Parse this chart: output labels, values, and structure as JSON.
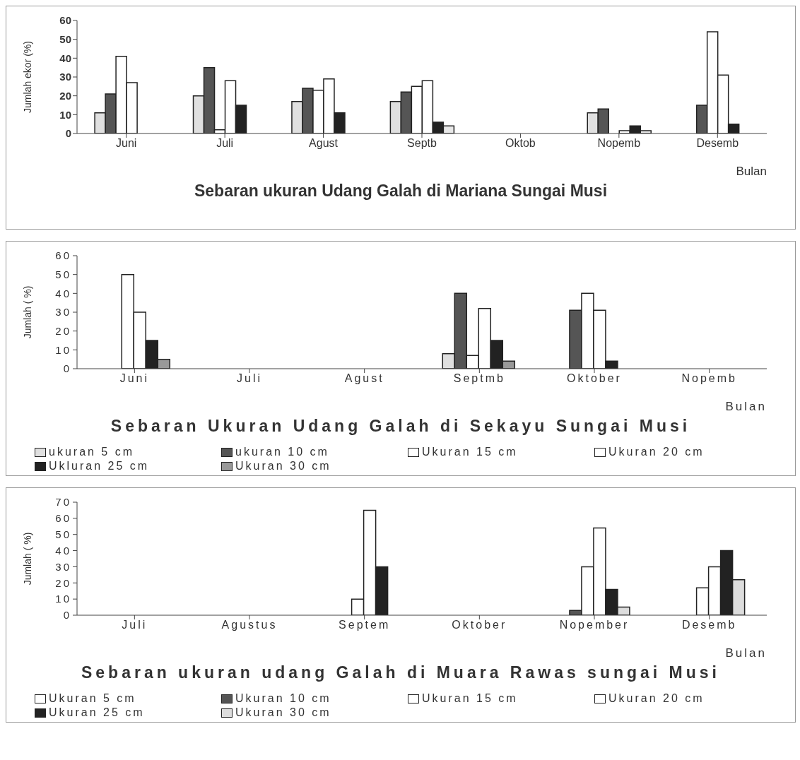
{
  "chart_data": [
    {
      "type": "bar",
      "title": "Sebaran  ukuran Udang Galah di Mariana Sungai Musi",
      "xlabel": "Bulan",
      "ylabel": "Jumlah ekor (%)",
      "categories": [
        "Juni",
        "Juli",
        "Agust",
        "Septb",
        "Oktob",
        "Nopemb",
        "Desemb"
      ],
      "ylim": [
        0,
        60
      ],
      "yticks": [
        0,
        10,
        20,
        30,
        40,
        50,
        60
      ],
      "legend": false,
      "series": [
        {
          "color": "#e0e0e0",
          "values": [
            11,
            20,
            17,
            17,
            0,
            11,
            0
          ]
        },
        {
          "color": "#555555",
          "values": [
            21,
            35,
            24,
            22,
            0,
            13,
            15
          ]
        },
        {
          "color": "#ffffff",
          "values": [
            41,
            2,
            23,
            25,
            0,
            0,
            54
          ]
        },
        {
          "color": "#ffffff",
          "values": [
            27,
            28,
            29,
            28,
            0,
            1.5,
            31
          ]
        },
        {
          "color": "#222222",
          "values": [
            0,
            15,
            11,
            6,
            0,
            4,
            5
          ]
        },
        {
          "color": "#e8e8e8",
          "values": [
            0,
            0,
            0,
            4,
            0,
            1.5,
            0
          ]
        }
      ]
    },
    {
      "type": "bar",
      "title": "Sebaran Ukuran Udang Galah di Sekayu Sungai Musi",
      "xlabel": "Bulan",
      "ylabel": "Jumlah ( %)",
      "categories": [
        "Juni",
        "Juli",
        "Agust",
        "Septmb",
        "Oktober",
        "Nopemb"
      ],
      "ylim": [
        0,
        60
      ],
      "yticks": [
        0,
        10,
        20,
        30,
        40,
        50,
        60
      ],
      "legend": "bottom",
      "series": [
        {
          "name": "ukuran 5 cm",
          "color": "#e0e0e0",
          "values": [
            0,
            0,
            0,
            8,
            0,
            0
          ]
        },
        {
          "name": "ukuran 10 cm",
          "color": "#555555",
          "values": [
            0,
            0,
            0,
            40,
            31,
            0
          ]
        },
        {
          "name": "Ukuran 15 cm",
          "color": "#ffffff",
          "values": [
            50,
            0,
            0,
            7,
            40,
            0
          ]
        },
        {
          "name": "Ukuran 20 cm",
          "color": "#ffffff",
          "values": [
            30,
            0,
            0,
            32,
            31,
            0
          ]
        },
        {
          "name": "Ukluran 25 cm",
          "color": "#222222",
          "values": [
            15,
            0,
            0,
            15,
            4,
            0
          ]
        },
        {
          "name": "Ukuran 30 cm",
          "color": "#999999",
          "values": [
            5,
            0,
            0,
            4,
            0,
            0
          ]
        }
      ]
    },
    {
      "type": "bar",
      "title": "Sebaran ukuran udang Galah di Muara Rawas sungai Musi",
      "xlabel": "Bulan",
      "ylabel": "Jumlah ( %)",
      "categories": [
        "Juli",
        "Agustus",
        "Septem",
        "Oktober",
        "Nopember",
        "Desemb"
      ],
      "ylim": [
        0,
        70
      ],
      "yticks": [
        0,
        10,
        20,
        30,
        40,
        50,
        60,
        70
      ],
      "legend": "bottom",
      "series": [
        {
          "name": "Ukuran 5 cm",
          "color": "#ffffff",
          "values": [
            0,
            0,
            0,
            0,
            0,
            0
          ]
        },
        {
          "name": "Ukuran 10 cm",
          "color": "#555555",
          "values": [
            0,
            0,
            0,
            0,
            3,
            0
          ]
        },
        {
          "name": "Ukuran 15 cm",
          "color": "#ffffff",
          "values": [
            0,
            0,
            10,
            0,
            30,
            17
          ]
        },
        {
          "name": "Ukuran 20 cm",
          "color": "#ffffff",
          "values": [
            0,
            0,
            65,
            0,
            54,
            30
          ]
        },
        {
          "name": "Ukuran 25 cm",
          "color": "#222222",
          "values": [
            0,
            0,
            30,
            0,
            16,
            40
          ]
        },
        {
          "name": "Ukuran 30 cm",
          "color": "#dddddd",
          "values": [
            0,
            0,
            0,
            0,
            5,
            22
          ]
        }
      ]
    }
  ]
}
